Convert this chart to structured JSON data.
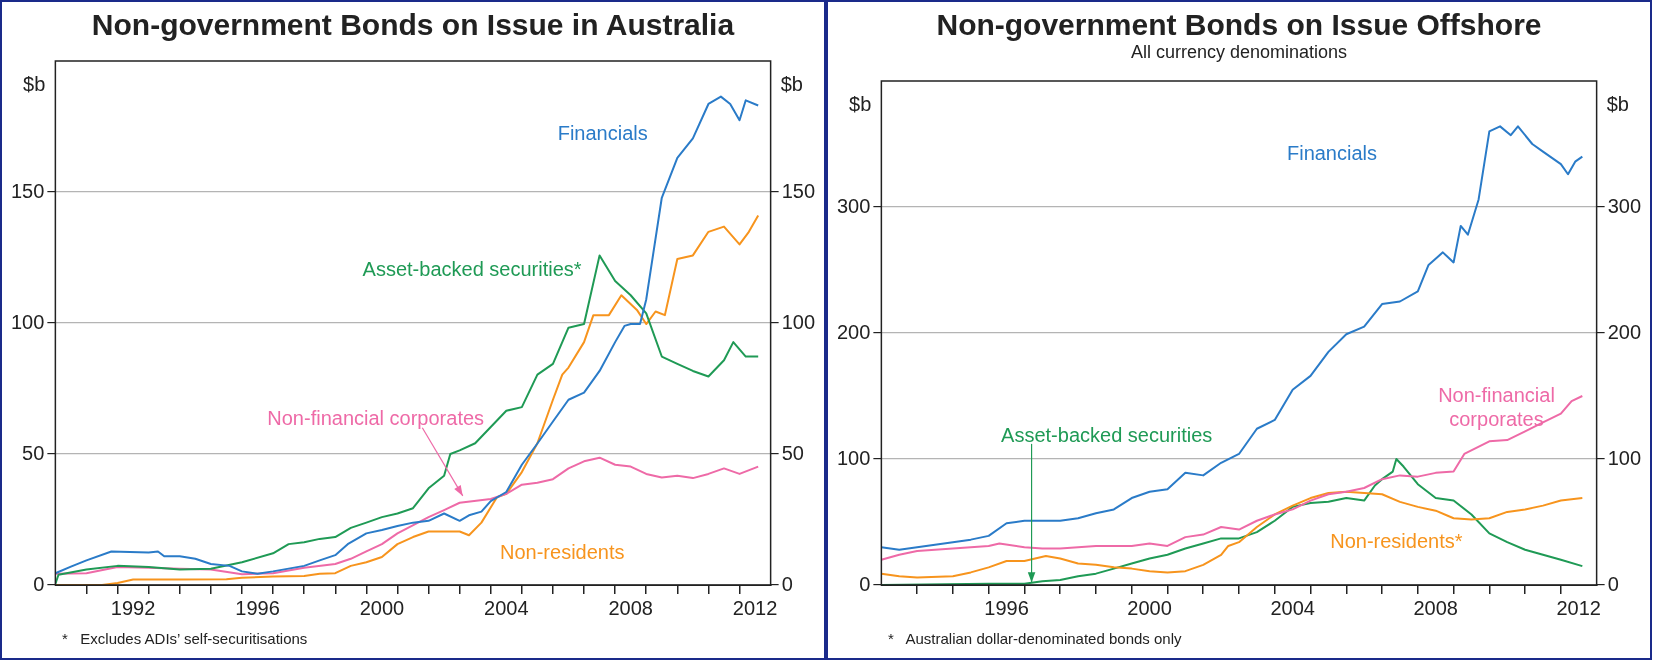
{
  "chart_data": [
    {
      "type": "line",
      "title": "Non-government Bonds on Issue in Australia",
      "ylabel": "$b",
      "y2label": "$b",
      "xlim": [
        1990,
        2013
      ],
      "xticks": [
        {
          "value": 1991,
          "label": null
        },
        {
          "value": 1992,
          "label": null
        },
        {
          "value": 1992.5,
          "label": "1992"
        },
        {
          "value": 1993,
          "label": null
        },
        {
          "value": 1994,
          "label": null
        },
        {
          "value": 1995,
          "label": null
        },
        {
          "value": 1996,
          "label": null
        },
        {
          "value": 1996.5,
          "label": "1996"
        },
        {
          "value": 1997,
          "label": null
        },
        {
          "value": 1998,
          "label": null
        },
        {
          "value": 1999,
          "label": null
        },
        {
          "value": 2000,
          "label": null
        },
        {
          "value": 2000.5,
          "label": "2000"
        },
        {
          "value": 2001,
          "label": null
        },
        {
          "value": 2002,
          "label": null
        },
        {
          "value": 2003,
          "label": null
        },
        {
          "value": 2004,
          "label": null
        },
        {
          "value": 2004.5,
          "label": "2004"
        },
        {
          "value": 2005,
          "label": null
        },
        {
          "value": 2006,
          "label": null
        },
        {
          "value": 2007,
          "label": null
        },
        {
          "value": 2008,
          "label": null
        },
        {
          "value": 2008.5,
          "label": "2008"
        },
        {
          "value": 2009,
          "label": null
        },
        {
          "value": 2010,
          "label": null
        },
        {
          "value": 2011,
          "label": null
        },
        {
          "value": 2012,
          "label": null
        },
        {
          "value": 2012.5,
          "label": "2012"
        }
      ],
      "ylim": [
        0,
        200
      ],
      "yticks": [
        0,
        50,
        100,
        150
      ],
      "y2lim": [
        0,
        200
      ],
      "y2ticks": [
        0,
        50,
        100,
        150
      ],
      "grid": "y",
      "legend": false,
      "annotations": [
        "*   Excludes ADIs’ self-securitisations"
      ],
      "series": [
        {
          "name": "Financials",
          "color": "#2a7bc8",
          "x": [
            1990,
            1990.5,
            1991,
            1991.8,
            1993,
            1993.3,
            1993.5,
            1994,
            1994.5,
            1995,
            1995.6,
            1996,
            1996.5,
            1997,
            1998,
            1998.5,
            1999,
            1999.4,
            2000,
            2000.5,
            2001,
            2001.5,
            2002,
            2002.5,
            2003,
            2003.3,
            2003.7,
            2004,
            2004.5,
            2005,
            2005.5,
            2006,
            2006.5,
            2007,
            2007.5,
            2008,
            2008.3,
            2008.5,
            2008.8,
            2009,
            2009.5,
            2010,
            2010.5,
            2011,
            2011.4,
            2011.7,
            2012,
            2012.2,
            2012.6
          ],
          "values": [
            4.5,
            7,
            9.4,
            12.8,
            12.4,
            12.8,
            11,
            11,
            10,
            8,
            7.3,
            5.2,
            4.3,
            5.2,
            7.3,
            9.4,
            11.4,
            15.6,
            19.7,
            21,
            22.5,
            23.8,
            24.5,
            27.3,
            24.5,
            26.6,
            28,
            32,
            35.5,
            45.9,
            54,
            62.4,
            70.7,
            73.4,
            81.7,
            92.7,
            98.9,
            99.6,
            99.6,
            109,
            147.8,
            163,
            170.5,
            183.6,
            186.4,
            183.6,
            177.4,
            185,
            183
          ]
        },
        {
          "name": "Asset-backed securities*",
          "color": "#1f9a55",
          "x": [
            1990,
            1990.1,
            1991,
            1992,
            1993,
            1994,
            1995,
            1996,
            1997,
            1997.5,
            1998,
            1998.5,
            1999,
            1999.5,
            2000,
            2000.5,
            2001,
            2001.5,
            2002,
            2002.5,
            2002.7,
            2003,
            2003.5,
            2004,
            2004.5,
            2005,
            2005.5,
            2006,
            2006.5,
            2007,
            2007.5,
            2008,
            2008.5,
            2009,
            2009.5,
            2010,
            2010.5,
            2011,
            2011.5,
            2011.8,
            2012.2,
            2012.6
          ],
          "values": [
            0.4,
            3.9,
            5.9,
            7.3,
            6.9,
            5.9,
            6.2,
            8.7,
            12.1,
            15.6,
            16.3,
            17.6,
            18.3,
            21.8,
            23.8,
            25.9,
            27.3,
            29.3,
            36.9,
            41.7,
            50,
            51.4,
            54.1,
            60.3,
            66.5,
            67.9,
            80.3,
            84.4,
            98.2,
            99.6,
            125.8,
            116,
            110.6,
            103.7,
            87.2,
            84.4,
            81.7,
            79.6,
            85.8,
            92.7,
            87.2,
            87.2
          ]
        },
        {
          "name": "Non-financial corporates",
          "color": "#ee6aa7",
          "x": [
            1990,
            1991,
            1992,
            1993,
            1994,
            1995,
            1996,
            1997,
            1998,
            1999,
            1999.5,
            2000,
            2000.5,
            2001,
            2002,
            2002.5,
            2003,
            2004,
            2004.5,
            2005,
            2005.5,
            2006,
            2006.5,
            2007,
            2007.5,
            2008,
            2008.5,
            2009,
            2009.5,
            2010,
            2010.5,
            2011,
            2011.5,
            2012,
            2012.6
          ],
          "values": [
            4.3,
            4.5,
            6.9,
            6.6,
            6.2,
            5.9,
            4.1,
            4.5,
            6.6,
            8,
            10,
            12.8,
            15.6,
            19.7,
            25.9,
            28.6,
            31.4,
            32.8,
            34.8,
            38.3,
            39,
            40.4,
            44.5,
            47.2,
            48.6,
            45.9,
            45.2,
            42.4,
            41,
            41.7,
            40.8,
            42.4,
            44.5,
            42.4,
            45.2
          ]
        },
        {
          "name": "Non-residents",
          "color": "#f7941d",
          "x": [
            1990,
            1991.5,
            1992,
            1992.5,
            1994,
            1995.5,
            1996,
            1997,
            1998,
            1998.5,
            1999,
            1999.5,
            2000,
            2000.5,
            2001,
            2001.5,
            2002,
            2002.5,
            2003,
            2003.3,
            2003.7,
            2004.2,
            2004.5,
            2005,
            2005.5,
            2006,
            2006.3,
            2006.5,
            2007,
            2007.3,
            2007.8,
            2008.2,
            2008.7,
            2009,
            2009.3,
            2009.6,
            2010,
            2010.5,
            2011,
            2011.5,
            2012,
            2012.3,
            2012.6
          ],
          "values": [
            0,
            0,
            0.8,
            2.1,
            2.1,
            2.2,
            2.8,
            3.2,
            3.4,
            4.3,
            4.5,
            7.3,
            8.7,
            10.7,
            15.6,
            18.3,
            20.4,
            20.4,
            20.4,
            19,
            23.8,
            33.5,
            34.8,
            43.1,
            54.1,
            70.7,
            80.3,
            83,
            92.7,
            103,
            103,
            110.6,
            105,
            99.6,
            104.4,
            103,
            124.4,
            125.8,
            134.8,
            136.8,
            130,
            134.8,
            141
          ]
        }
      ]
    },
    {
      "type": "line",
      "title": "Non-government Bonds on Issue Offshore",
      "subtitle": "All currency denominations",
      "ylabel": "$b",
      "y2label": "$b",
      "xlim": [
        1993,
        2013
      ],
      "xticks": [
        {
          "value": 1994,
          "label": null
        },
        {
          "value": 1995,
          "label": null
        },
        {
          "value": 1996,
          "label": null
        },
        {
          "value": 1996.5,
          "label": "1996"
        },
        {
          "value": 1997,
          "label": null
        },
        {
          "value": 1998,
          "label": null
        },
        {
          "value": 1999,
          "label": null
        },
        {
          "value": 2000,
          "label": null
        },
        {
          "value": 2000.5,
          "label": "2000"
        },
        {
          "value": 2001,
          "label": null
        },
        {
          "value": 2002,
          "label": null
        },
        {
          "value": 2003,
          "label": null
        },
        {
          "value": 2004,
          "label": null
        },
        {
          "value": 2004.5,
          "label": "2004"
        },
        {
          "value": 2005,
          "label": null
        },
        {
          "value": 2006,
          "label": null
        },
        {
          "value": 2007,
          "label": null
        },
        {
          "value": 2008,
          "label": null
        },
        {
          "value": 2008.5,
          "label": "2008"
        },
        {
          "value": 2009,
          "label": null
        },
        {
          "value": 2010,
          "label": null
        },
        {
          "value": 2011,
          "label": null
        },
        {
          "value": 2012,
          "label": null
        },
        {
          "value": 2012.5,
          "label": "2012"
        }
      ],
      "ylim": [
        0,
        400
      ],
      "yticks": [
        0,
        100,
        200,
        300
      ],
      "y2lim": [
        0,
        400
      ],
      "y2ticks": [
        0,
        100,
        200,
        300
      ],
      "grid": "y",
      "legend": false,
      "annotations": [
        "*   Australian dollar-denominated bonds only"
      ],
      "series": [
        {
          "name": "Financials",
          "color": "#2a7bc8",
          "x": [
            1993,
            1993.5,
            1994,
            1995,
            1995.5,
            1996,
            1996.5,
            1997,
            1998,
            1998.5,
            1999,
            1999.5,
            2000,
            2000.5,
            2001,
            2001.5,
            2002,
            2002.5,
            2003,
            2003.5,
            2004,
            2004.5,
            2005,
            2005.5,
            2006,
            2006.5,
            2007,
            2007.5,
            2008,
            2008.3,
            2008.7,
            2009,
            2009.2,
            2009.4,
            2009.7,
            2010,
            2010.3,
            2010.6,
            2010.8,
            2011.2,
            2011.5,
            2012,
            2012.2,
            2012.4,
            2012.6
          ],
          "values": [
            30,
            28,
            30,
            34,
            36,
            39,
            49,
            51,
            51,
            53,
            57,
            60,
            69,
            74,
            76,
            89,
            87,
            97,
            104,
            124,
            131,
            155,
            166,
            185,
            199,
            205,
            223,
            225,
            233,
            254,
            264,
            256,
            285,
            278,
            306,
            360,
            364,
            357,
            364,
            350,
            344,
            334,
            326,
            336,
            340
          ]
        },
        {
          "name": "Non-financial corporates",
          "color": "#ee6aa7",
          "x": [
            1993,
            1993.5,
            1994,
            1995,
            1996,
            1996.3,
            1997,
            1997.5,
            1998,
            1999,
            2000,
            2000.5,
            2001,
            2001.5,
            2002,
            2002.5,
            2003,
            2003.5,
            2004,
            2004.5,
            2005,
            2005.5,
            2006,
            2006.5,
            2007,
            2007.5,
            2008,
            2008.5,
            2009,
            2009.3,
            2010,
            2010.5,
            2011,
            2011.5,
            2012,
            2012.3,
            2012.6
          ],
          "values": [
            20,
            24,
            27,
            29,
            31,
            33,
            30,
            29,
            29,
            31,
            31,
            33,
            31,
            38,
            40,
            46,
            44,
            51,
            56,
            60,
            67,
            72,
            74,
            77,
            84,
            87,
            86,
            89,
            90,
            104,
            114,
            115,
            122,
            129,
            136,
            146,
            150
          ]
        },
        {
          "name": "Non-residents*",
          "color": "#f7941d",
          "x": [
            1993,
            1993.5,
            1994,
            1995,
            1995.5,
            1996,
            1996.5,
            1997,
            1997.3,
            1997.6,
            1998,
            1998.5,
            1999,
            1999.5,
            2000,
            2000.5,
            2001,
            2001.5,
            2002,
            2002.5,
            2002.7,
            2003,
            2003.5,
            2004,
            2004.5,
            2005,
            2005.5,
            2006,
            2006.5,
            2007,
            2007.5,
            2008,
            2008.5,
            2009,
            2009.5,
            2010,
            2010.5,
            2011,
            2011.5,
            2012,
            2012.6
          ],
          "values": [
            9,
            7,
            6,
            7,
            10,
            14,
            19,
            19,
            21,
            23,
            21,
            17,
            16,
            14,
            13,
            11,
            10,
            11,
            16,
            24,
            31,
            34,
            46,
            56,
            63,
            69,
            73,
            74,
            73,
            72,
            66,
            62,
            59,
            53,
            52,
            53,
            58,
            60,
            63,
            67,
            69
          ]
        },
        {
          "name": "Asset-backed securities",
          "color": "#1f9a55",
          "x": [
            1993,
            1996,
            1997,
            1997.5,
            1998,
            1998.5,
            1999,
            1999.5,
            2000,
            2000.5,
            2001,
            2001.5,
            2002,
            2002.5,
            2003,
            2003.5,
            2004,
            2004.5,
            2005,
            2005.5,
            2006,
            2006.5,
            2006.8,
            2007,
            2007.3,
            2007.4,
            2007.6,
            2008,
            2008.5,
            2009,
            2009.5,
            2010,
            2010.5,
            2011,
            2011.5,
            2012,
            2012.6
          ],
          "values": [
            0,
            1,
            1,
            3,
            4,
            7,
            9,
            13,
            17,
            21,
            24,
            29,
            33,
            37,
            37,
            42,
            51,
            62,
            65,
            66,
            69,
            67,
            79,
            84,
            90,
            100,
            94,
            80,
            69,
            67,
            56,
            41,
            34,
            28,
            24,
            20,
            15
          ]
        }
      ]
    }
  ]
}
